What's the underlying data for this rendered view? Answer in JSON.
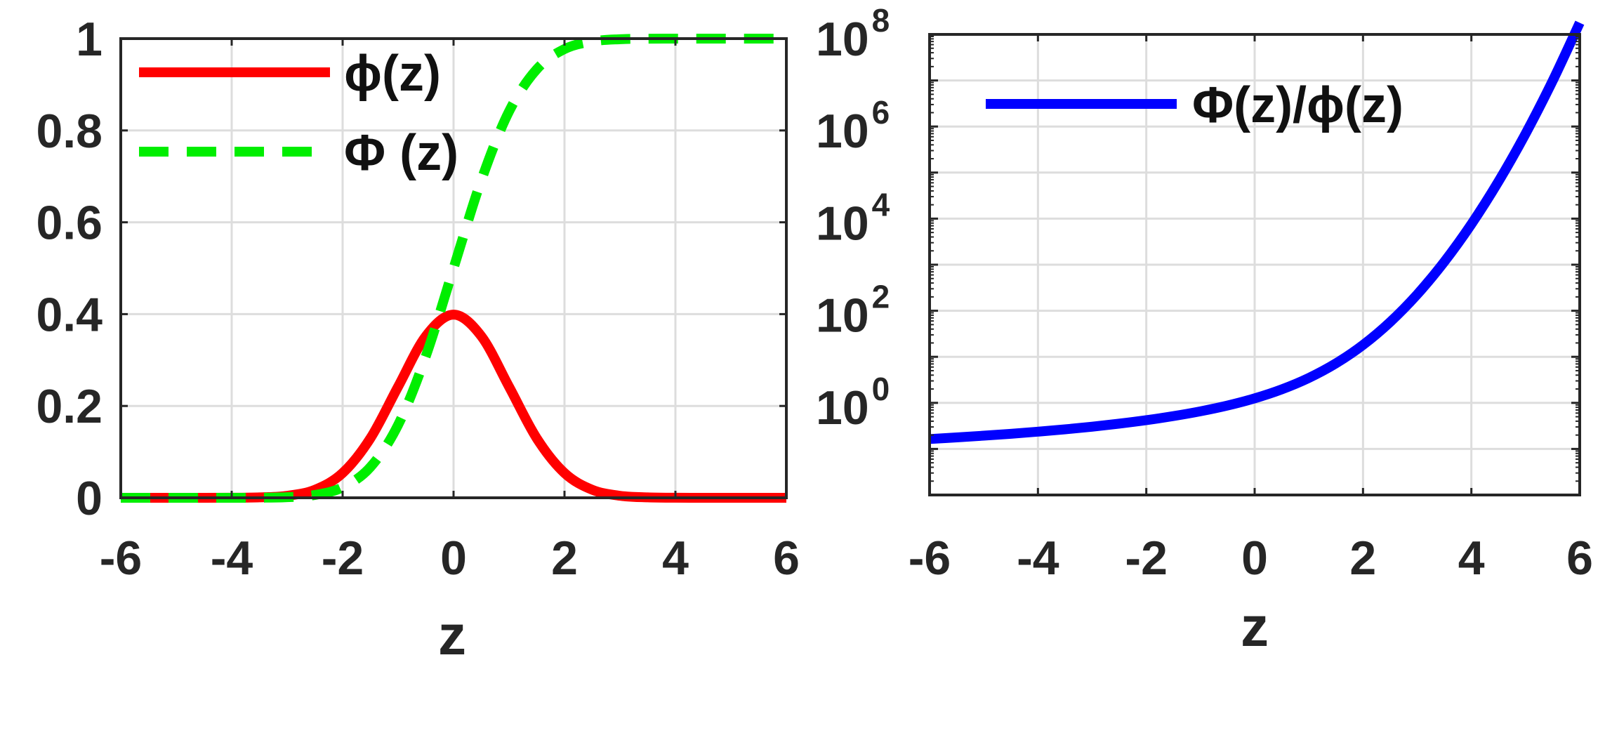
{
  "chart_data": [
    {
      "type": "line",
      "xlabel": "z",
      "ylabel": "",
      "xlim": [
        -6,
        6
      ],
      "ylim": [
        0,
        1
      ],
      "xticks": [
        "-6",
        "-4",
        "-2",
        "0",
        "2",
        "4",
        "6"
      ],
      "yticks": [
        "0",
        "0.2",
        "0.4",
        "0.6",
        "0.8",
        "1"
      ],
      "grid": true,
      "legend_position": "top-left",
      "x": [
        -6,
        -5.5,
        -5,
        -4.5,
        -4,
        -3.5,
        -3,
        -2.5,
        -2,
        -1.5,
        -1,
        -0.5,
        0,
        0.5,
        1,
        1.5,
        2,
        2.5,
        3,
        3.5,
        4,
        4.5,
        5,
        5.5,
        6
      ],
      "series": [
        {
          "name": "ϕ(z)",
          "color": "#ff0000",
          "style": "solid",
          "values": [
            0,
            0,
            0,
            0,
            0.0001,
            0.0009,
            0.0044,
            0.0175,
            0.054,
            0.1295,
            0.242,
            0.3521,
            0.3989,
            0.3521,
            0.242,
            0.1295,
            0.054,
            0.0175,
            0.0044,
            0.0009,
            0.0001,
            0,
            0,
            0,
            0
          ]
        },
        {
          "name": "Φ (z)",
          "color": "#00ee00",
          "style": "dashed",
          "values": [
            0,
            0,
            0,
            0,
            0,
            0.0002,
            0.0013,
            0.0062,
            0.0228,
            0.0668,
            0.1587,
            0.3085,
            0.5,
            0.6915,
            0.8413,
            0.9332,
            0.9772,
            0.9938,
            0.9987,
            0.9998,
            1,
            1,
            1,
            1,
            1
          ]
        }
      ]
    },
    {
      "type": "line",
      "xlabel": "z",
      "ylabel": "",
      "yscale": "log",
      "xlim": [
        -6,
        6
      ],
      "ylim": [
        0.01,
        100000000
      ],
      "xticks": [
        "-6",
        "-4",
        "-2",
        "0",
        "2",
        "4",
        "6"
      ],
      "yticks": [
        {
          "base": "10",
          "exp": "0",
          "value": 1
        },
        {
          "base": "10",
          "exp": "2",
          "value": 100
        },
        {
          "base": "10",
          "exp": "4",
          "value": 10000
        },
        {
          "base": "10",
          "exp": "6",
          "value": 1000000
        },
        {
          "base": "10",
          "exp": "8",
          "value": 100000000
        }
      ],
      "grid": true,
      "legend_position": "top-left",
      "x": [
        -6,
        -5.5,
        -5,
        -4.5,
        -4,
        -3.5,
        -3,
        -2.5,
        -2,
        -1.5,
        -1,
        -0.5,
        0,
        0.5,
        1,
        1.5,
        2,
        2.5,
        3,
        3.5,
        4,
        4.5,
        5,
        5.5,
        6
      ],
      "series": [
        {
          "name": "Φ(z)/ϕ(z)",
          "color": "#0000ff",
          "style": "solid",
          "values": [
            0.164,
            0.178,
            0.194,
            0.213,
            0.237,
            0.266,
            0.304,
            0.354,
            0.421,
            0.516,
            0.656,
            0.876,
            1.253,
            1.964,
            3.477,
            7.205,
            18.1,
            56.8,
            226,
            1157,
            7585,
            64000,
            696000,
            9810000,
            179000000
          ]
        }
      ]
    }
  ]
}
